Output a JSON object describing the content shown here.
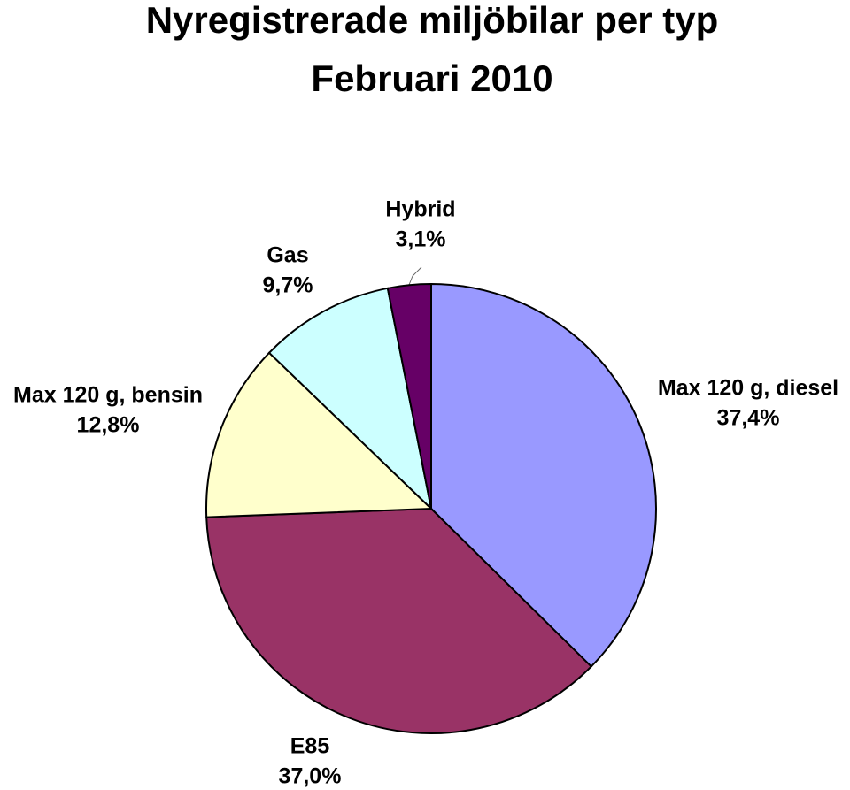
{
  "chart_data": {
    "type": "pie",
    "title": "Nyregistrerade miljöbilar per typ",
    "subtitle": "Februari 2010",
    "categories": [
      "Max 120 g, diesel",
      "E85",
      "Max 120 g, bensin",
      "Gas",
      "Hybrid"
    ],
    "values": [
      37.4,
      37.0,
      12.8,
      9.7,
      3.1
    ],
    "value_labels": [
      "37,4%",
      "37,0%",
      "12,8%",
      "9,7%",
      "3,1%"
    ],
    "colors": [
      "#9999ff",
      "#993366",
      "#ffffcc",
      "#ccffff",
      "#660066"
    ]
  }
}
